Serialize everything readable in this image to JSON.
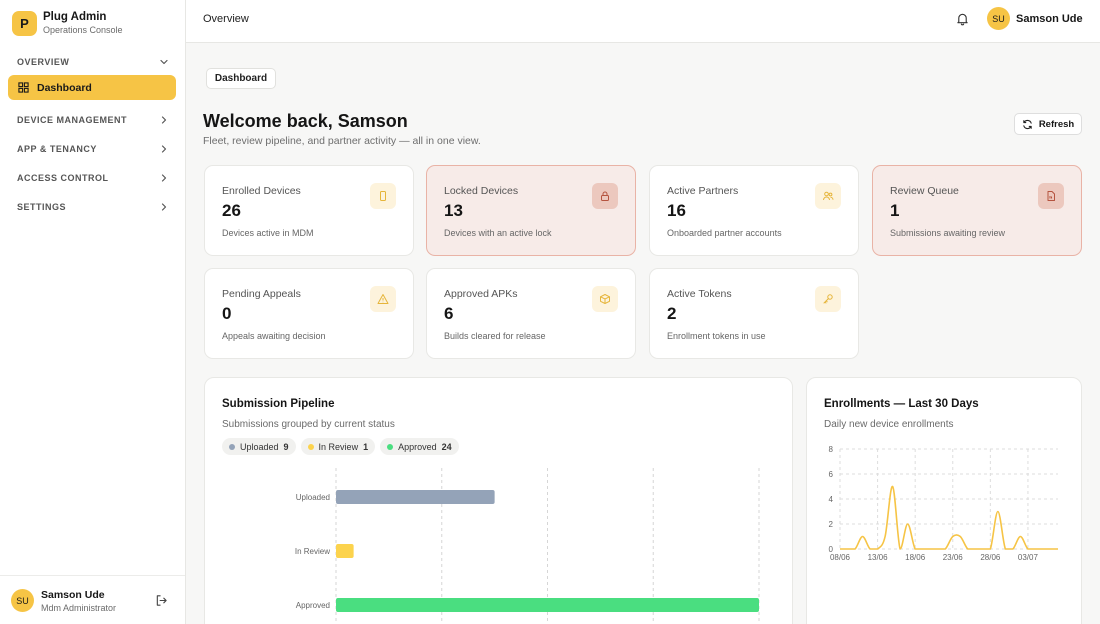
{
  "sidebar": {
    "brand_initial": "P",
    "brand_title": "Plug Admin",
    "brand_subtitle": "Operations Console",
    "sections": [
      {
        "label": "OVERVIEW",
        "icon": "chevron-down-icon"
      },
      {
        "label": "DEVICE MANAGEMENT",
        "icon": "chevron-right-icon"
      },
      {
        "label": "APP & TENANCY",
        "icon": "chevron-right-icon"
      },
      {
        "label": "ACCESS CONTROL",
        "icon": "chevron-right-icon"
      },
      {
        "label": "SETTINGS",
        "icon": "chevron-right-icon"
      }
    ],
    "active_item": {
      "label": "Dashboard",
      "icon": "grid-icon"
    },
    "user": {
      "initials": "SU",
      "name": "Samson Ude",
      "role": "Mdm Administrator"
    }
  },
  "topbar": {
    "breadcrumb": "Overview",
    "user_initials": "SU",
    "user_name": "Samson Ude"
  },
  "main": {
    "tab_label": "Dashboard",
    "title": "Welcome back, Samson",
    "subtitle": "Fleet, review pipeline, and partner activity — all in one view.",
    "refresh_label": "Refresh",
    "stats": [
      {
        "label": "Enrolled Devices",
        "value": "26",
        "desc": "Devices active in MDM",
        "icon": "phone-icon",
        "alert": false
      },
      {
        "label": "Locked Devices",
        "value": "13",
        "desc": "Devices with an active lock",
        "icon": "lock-icon",
        "alert": true
      },
      {
        "label": "Active Partners",
        "value": "16",
        "desc": "Onboarded partner accounts",
        "icon": "users-icon",
        "alert": false
      },
      {
        "label": "Review Queue",
        "value": "1",
        "desc": "Submissions awaiting review",
        "icon": "document-icon",
        "alert": true
      },
      {
        "label": "Pending Appeals",
        "value": "0",
        "desc": "Appeals awaiting decision",
        "icon": "warning-icon",
        "alert": false
      },
      {
        "label": "Approved APKs",
        "value": "6",
        "desc": "Builds cleared for release",
        "icon": "package-icon",
        "alert": false
      },
      {
        "label": "Active Tokens",
        "value": "2",
        "desc": "Enrollment tokens in use",
        "icon": "key-icon",
        "alert": false
      }
    ]
  },
  "colors": {
    "accent": "#f6c445",
    "uploaded": "#94a3b8",
    "in_review": "#fcd34d",
    "approved": "#4ade80",
    "alert_bg": "#f7ebe8",
    "line": "#f6c445"
  },
  "pipeline": {
    "title": "Submission Pipeline",
    "subtitle": "Submissions grouped by current status",
    "legend": [
      {
        "label": "Uploaded",
        "count": "9",
        "color": "#94a3b8"
      },
      {
        "label": "In Review",
        "count": "1",
        "color": "#fcd34d"
      },
      {
        "label": "Approved",
        "count": "24",
        "color": "#4ade80"
      }
    ]
  },
  "enrollments": {
    "title": "Enrollments — Last 30 Days",
    "subtitle": "Daily new device enrollments"
  },
  "chart_data": [
    {
      "type": "bar",
      "orientation": "horizontal",
      "categories": [
        "Uploaded",
        "In Review",
        "Approved"
      ],
      "values": [
        9,
        1,
        24
      ],
      "colors": [
        "#94a3b8",
        "#fcd34d",
        "#4ade80"
      ],
      "xlim": [
        0,
        24
      ],
      "grid": true
    },
    {
      "type": "line",
      "x": [
        "08/06",
        "09/06",
        "10/06",
        "11/06",
        "12/06",
        "13/06",
        "14/06",
        "15/06",
        "16/06",
        "17/06",
        "18/06",
        "19/06",
        "20/06",
        "21/06",
        "22/06",
        "23/06",
        "24/06",
        "25/06",
        "26/06",
        "27/06",
        "28/06",
        "29/06",
        "30/06",
        "01/07",
        "02/07",
        "03/07",
        "04/07",
        "05/07",
        "06/07",
        "07/07"
      ],
      "values": [
        0,
        0,
        0,
        1,
        0,
        0,
        1,
        5,
        0,
        2,
        0,
        0,
        0,
        0,
        0,
        1,
        1,
        0,
        0,
        0,
        0,
        3,
        0,
        0,
        1,
        0,
        0,
        0,
        0,
        0
      ],
      "x_tick_labels": [
        "08/06",
        "13/06",
        "18/06",
        "23/06",
        "28/06",
        "03/07"
      ],
      "y_ticks": [
        "0",
        "2",
        "4",
        "6",
        "8"
      ],
      "ylim": [
        0,
        8
      ],
      "grid": true,
      "color": "#f6c445"
    }
  ]
}
